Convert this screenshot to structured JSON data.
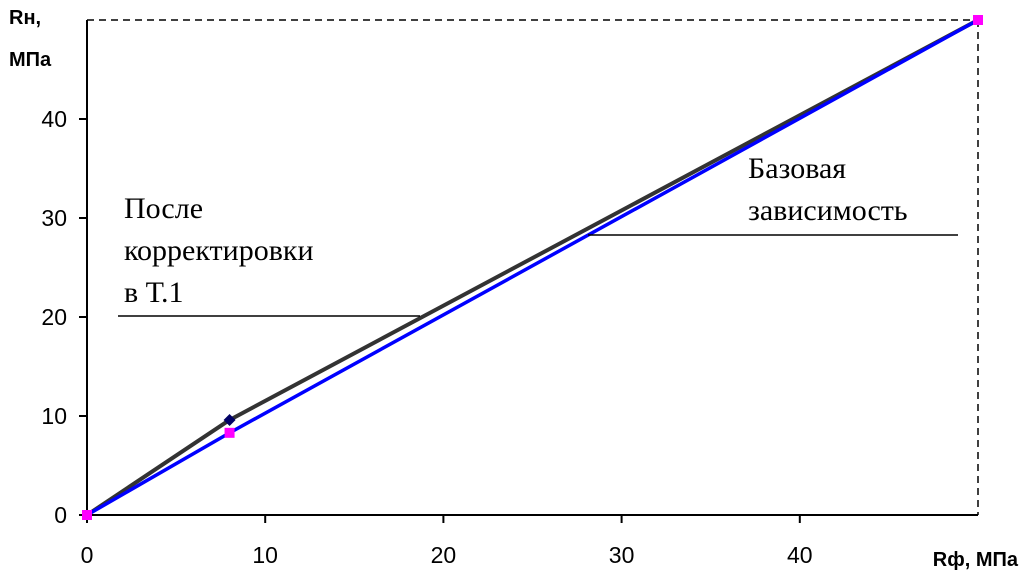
{
  "chart_data": {
    "type": "line",
    "title": "",
    "ylabel": [
      "Rн,",
      "МПа"
    ],
    "xlabel": "Rф, МПа",
    "xlim": [
      0,
      50
    ],
    "ylim": [
      0,
      50
    ],
    "xticks": [
      0,
      10,
      20,
      30,
      40
    ],
    "yticks": [
      0,
      10,
      20,
      30,
      40
    ],
    "grid": false,
    "series": [
      {
        "color": "#333333",
        "marker_color": "#000066",
        "x": [
          0,
          8,
          50
        ],
        "y": [
          0,
          9.6,
          50
        ]
      },
      {
        "color": "#0000ff",
        "marker_color": "#ff00ff",
        "x": [
          0,
          8,
          50
        ],
        "y": [
          0,
          8.3,
          50
        ]
      }
    ],
    "annotations": [
      {
        "lines": [
          "После",
          "корректировки",
          "в Т.1"
        ],
        "series_index": 0
      },
      {
        "lines": [
          "Базовая",
          "зависимость"
        ],
        "series_index": 1
      }
    ],
    "reference_lines": {
      "top_dashed_y": 50,
      "right_dashed_x": 50
    }
  }
}
